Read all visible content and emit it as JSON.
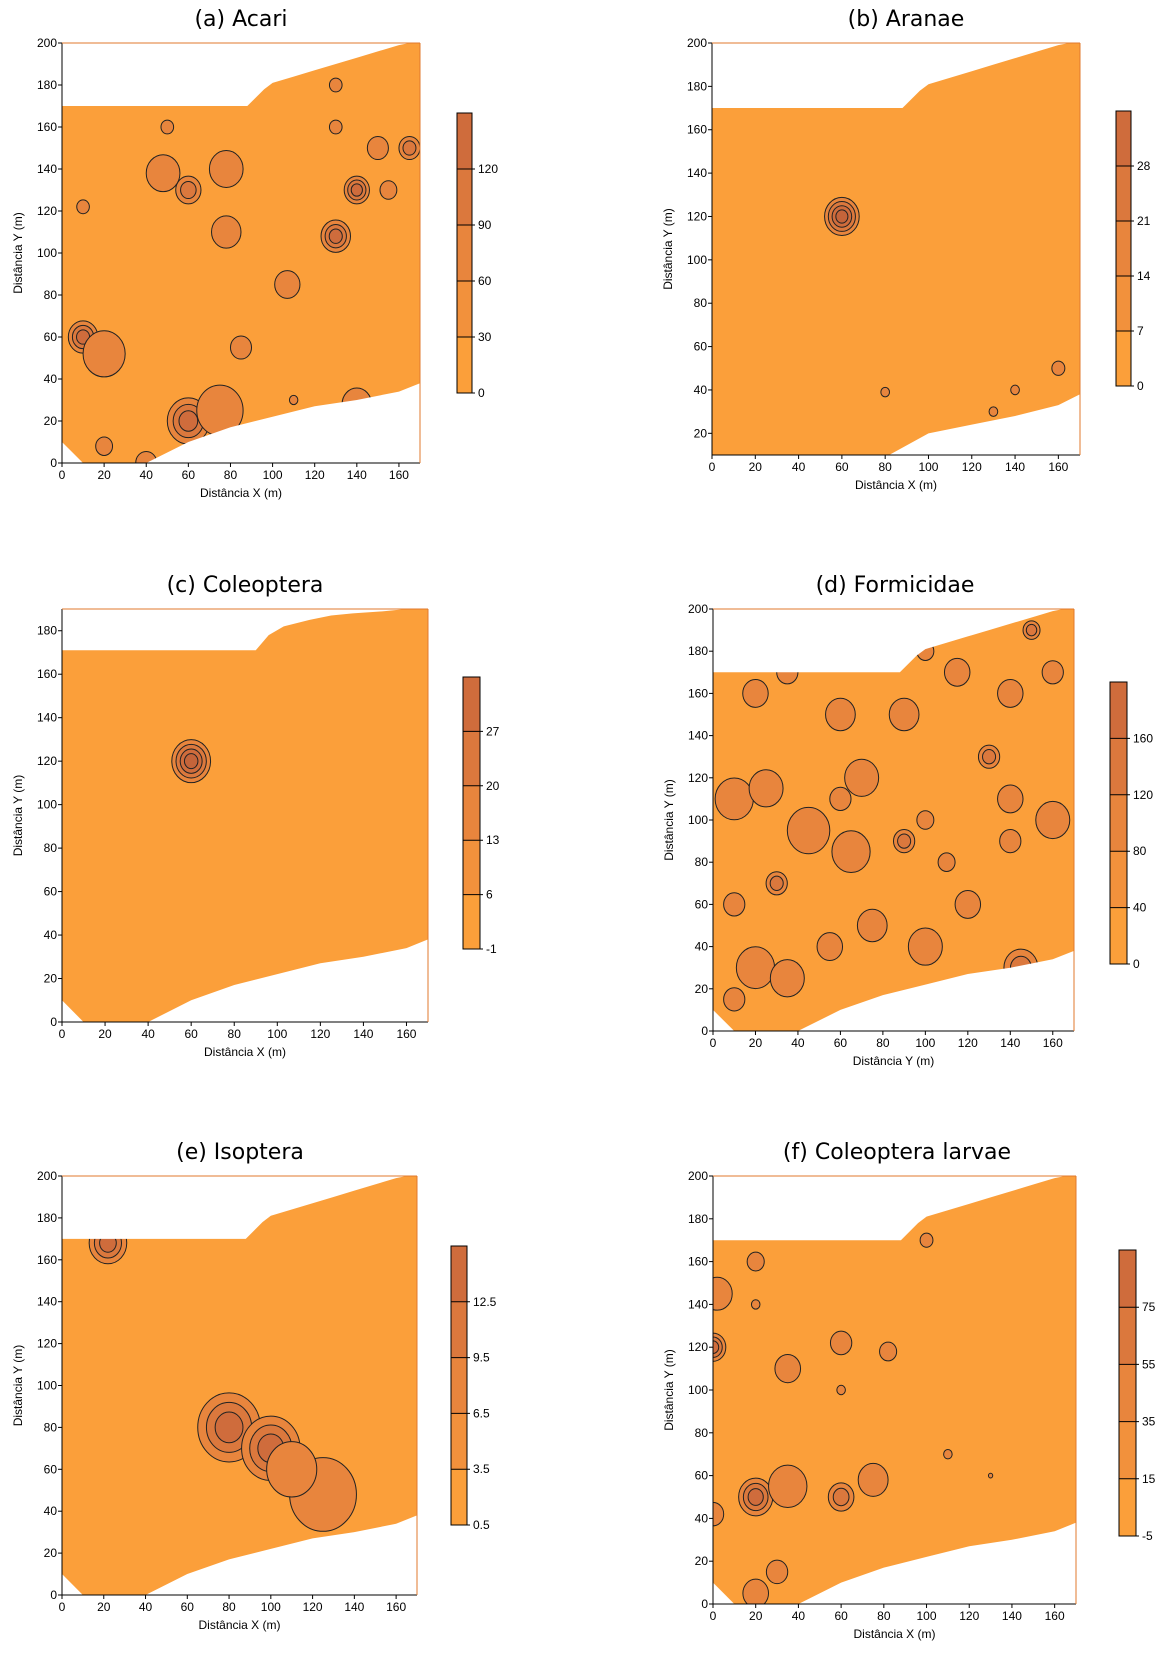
{
  "colors": {
    "base": "#FB9F3A",
    "c2": "#F2913C",
    "c3": "#E8853D",
    "c4": "#DB783D",
    "c5": "#CF6C3C",
    "c6": "#C4643A",
    "blank": "#ffffff",
    "frame": "#E07A2C"
  },
  "chart_data": [
    {
      "type": "contour",
      "title": "(a) Acari",
      "xlabel": "Distância X (m)",
      "ylabel": "Distância Y (m)",
      "xlim": [
        0,
        170
      ],
      "ylim": [
        0,
        200
      ],
      "xticks": [
        0,
        20,
        40,
        60,
        80,
        100,
        120,
        140,
        160
      ],
      "yticks": [
        0,
        20,
        40,
        60,
        80,
        100,
        120,
        140,
        160,
        180,
        200
      ],
      "colorbar": {
        "ticks": [
          0,
          30,
          60,
          90,
          120
        ],
        "vmin": 0,
        "vmax": 150
      },
      "hotspots": [
        {
          "x": 10,
          "y": 60,
          "r": 7,
          "levels": 3
        },
        {
          "x": 20,
          "y": 52,
          "r": 10,
          "levels": 1
        },
        {
          "x": 60,
          "y": 20,
          "r": 10,
          "levels": 3
        },
        {
          "x": 75,
          "y": 25,
          "r": 11,
          "levels": 1
        },
        {
          "x": 60,
          "y": 130,
          "r": 6,
          "levels": 2
        },
        {
          "x": 48,
          "y": 138,
          "r": 8,
          "levels": 1
        },
        {
          "x": 78,
          "y": 140,
          "r": 8,
          "levels": 1
        },
        {
          "x": 130,
          "y": 108,
          "r": 7,
          "levels": 3
        },
        {
          "x": 140,
          "y": 130,
          "r": 6,
          "levels": 3
        },
        {
          "x": 78,
          "y": 110,
          "r": 7,
          "levels": 1
        },
        {
          "x": 107,
          "y": 85,
          "r": 6,
          "levels": 1
        },
        {
          "x": 140,
          "y": 28,
          "r": 7,
          "levels": 1
        },
        {
          "x": 20,
          "y": 8,
          "r": 4,
          "levels": 1
        },
        {
          "x": 40,
          "y": 0,
          "r": 5,
          "levels": 1
        },
        {
          "x": 150,
          "y": 150,
          "r": 5,
          "levels": 1
        },
        {
          "x": 165,
          "y": 150,
          "r": 5,
          "levels": 2
        },
        {
          "x": 50,
          "y": 160,
          "r": 3,
          "levels": 1
        },
        {
          "x": 130,
          "y": 180,
          "r": 3,
          "levels": 1
        },
        {
          "x": 130,
          "y": 160,
          "r": 3,
          "levels": 1
        },
        {
          "x": 155,
          "y": 130,
          "r": 4,
          "levels": 1
        },
        {
          "x": 10,
          "y": 122,
          "r": 3,
          "levels": 1
        },
        {
          "x": 110,
          "y": 30,
          "r": 2,
          "levels": 1
        },
        {
          "x": 85,
          "y": 55,
          "r": 5,
          "levels": 1
        }
      ]
    },
    {
      "type": "contour",
      "title": "(b) Aranae",
      "xlabel": "Distância X (m)",
      "ylabel": "Distância Y (m)",
      "xlim": [
        0,
        170
      ],
      "ylim": [
        10,
        200
      ],
      "xticks": [
        0,
        20,
        40,
        60,
        80,
        100,
        120,
        140,
        160
      ],
      "yticks": [
        20,
        40,
        60,
        80,
        100,
        120,
        140,
        160,
        180,
        200
      ],
      "colorbar": {
        "ticks": [
          0,
          7,
          14,
          21,
          28
        ],
        "vmin": 0,
        "vmax": 35
      },
      "hotspots": [
        {
          "x": 60,
          "y": 120,
          "r": 8,
          "levels": 4
        },
        {
          "x": 80,
          "y": 39,
          "r": 2,
          "levels": 1
        },
        {
          "x": 130,
          "y": 30,
          "r": 2,
          "levels": 1
        },
        {
          "x": 140,
          "y": 40,
          "r": 2,
          "levels": 1
        },
        {
          "x": 160,
          "y": 50,
          "r": 3,
          "levels": 1
        }
      ]
    },
    {
      "type": "contour",
      "title": "(c) Coleoptera",
      "xlabel": "Distância X (m)",
      "ylabel": "Distância Y (m)",
      "xlim": [
        0,
        170
      ],
      "ylim": [
        0,
        190
      ],
      "xticks": [
        0,
        20,
        40,
        60,
        80,
        100,
        120,
        140,
        160
      ],
      "yticks": [
        0,
        20,
        40,
        60,
        80,
        100,
        120,
        140,
        160,
        180
      ],
      "colorbar": {
        "ticks": [
          -1,
          6,
          13,
          20,
          27
        ],
        "vmin": -1,
        "vmax": 34
      },
      "hotspots": [
        {
          "x": 60,
          "y": 120,
          "r": 9,
          "levels": 4
        }
      ]
    },
    {
      "type": "contour",
      "title": "(d) Formicidae",
      "xlabel": "Distância Y (m)",
      "ylabel": "Distância Y (m)",
      "xlim": [
        0,
        170
      ],
      "ylim": [
        0,
        200
      ],
      "xticks": [
        0,
        20,
        40,
        60,
        80,
        100,
        120,
        140,
        160
      ],
      "yticks": [
        0,
        20,
        40,
        60,
        80,
        100,
        120,
        140,
        160,
        180,
        200
      ],
      "colorbar": {
        "ticks": [
          0,
          40,
          80,
          120,
          160
        ],
        "vmin": 0,
        "vmax": 200
      },
      "hotspots": [
        {
          "x": 20,
          "y": 30,
          "r": 9,
          "levels": 1
        },
        {
          "x": 35,
          "y": 25,
          "r": 8,
          "levels": 1
        },
        {
          "x": 30,
          "y": 70,
          "r": 5,
          "levels": 2
        },
        {
          "x": 10,
          "y": 110,
          "r": 9,
          "levels": 1
        },
        {
          "x": 25,
          "y": 115,
          "r": 8,
          "levels": 1
        },
        {
          "x": 45,
          "y": 95,
          "r": 10,
          "levels": 1
        },
        {
          "x": 65,
          "y": 85,
          "r": 9,
          "levels": 1
        },
        {
          "x": 70,
          "y": 120,
          "r": 8,
          "levels": 1
        },
        {
          "x": 90,
          "y": 90,
          "r": 5,
          "levels": 2
        },
        {
          "x": 100,
          "y": 100,
          "r": 4,
          "levels": 1
        },
        {
          "x": 110,
          "y": 80,
          "r": 4,
          "levels": 1
        },
        {
          "x": 130,
          "y": 130,
          "r": 5,
          "levels": 2
        },
        {
          "x": 145,
          "y": 30,
          "r": 8,
          "levels": 2
        },
        {
          "x": 150,
          "y": 190,
          "r": 4,
          "levels": 2
        },
        {
          "x": 115,
          "y": 170,
          "r": 6,
          "levels": 1
        },
        {
          "x": 60,
          "y": 150,
          "r": 7,
          "levels": 1
        },
        {
          "x": 90,
          "y": 150,
          "r": 7,
          "levels": 1
        },
        {
          "x": 140,
          "y": 160,
          "r": 6,
          "levels": 1
        },
        {
          "x": 20,
          "y": 160,
          "r": 6,
          "levels": 1
        },
        {
          "x": 35,
          "y": 170,
          "r": 5,
          "levels": 1
        },
        {
          "x": 160,
          "y": 100,
          "r": 8,
          "levels": 1
        },
        {
          "x": 100,
          "y": 40,
          "r": 8,
          "levels": 1
        },
        {
          "x": 75,
          "y": 50,
          "r": 7,
          "levels": 1
        },
        {
          "x": 55,
          "y": 40,
          "r": 6,
          "levels": 1
        },
        {
          "x": 10,
          "y": 15,
          "r": 5,
          "levels": 1
        },
        {
          "x": 120,
          "y": 60,
          "r": 6,
          "levels": 1
        },
        {
          "x": 140,
          "y": 110,
          "r": 6,
          "levels": 1
        },
        {
          "x": 60,
          "y": 110,
          "r": 5,
          "levels": 1
        },
        {
          "x": 10,
          "y": 60,
          "r": 5,
          "levels": 1
        },
        {
          "x": 160,
          "y": 170,
          "r": 5,
          "levels": 1
        },
        {
          "x": 100,
          "y": 180,
          "r": 4,
          "levels": 1
        },
        {
          "x": 140,
          "y": 90,
          "r": 5,
          "levels": 1
        }
      ]
    },
    {
      "type": "contour",
      "title": "(e) Isoptera",
      "xlabel": "Distância X (m)",
      "ylabel": "Distância Y (m)",
      "xlim": [
        0,
        170
      ],
      "ylim": [
        0,
        200
      ],
      "xticks": [
        0,
        20,
        40,
        60,
        80,
        100,
        120,
        140,
        160
      ],
      "yticks": [
        0,
        20,
        40,
        60,
        80,
        100,
        120,
        140,
        160,
        180,
        200
      ],
      "colorbar": {
        "ticks": [
          0.5,
          3.5,
          6.5,
          9.5,
          12.5
        ],
        "vmin": 0.5,
        "vmax": 15.5
      },
      "hotspots": [
        {
          "x": 22,
          "y": 168,
          "r": 9,
          "levels": 3
        },
        {
          "x": 80,
          "y": 80,
          "r": 15,
          "levels": 3
        },
        {
          "x": 100,
          "y": 70,
          "r": 14,
          "levels": 3
        },
        {
          "x": 125,
          "y": 48,
          "r": 16,
          "levels": 1
        },
        {
          "x": 110,
          "y": 60,
          "r": 12,
          "levels": 1
        }
      ]
    },
    {
      "type": "contour",
      "title": "(f) Coleoptera larvae",
      "xlabel": "Distância X (m)",
      "ylabel": "Distância Y (m)",
      "xlim": [
        0,
        170
      ],
      "ylim": [
        0,
        200
      ],
      "xticks": [
        0,
        20,
        40,
        60,
        80,
        100,
        120,
        140,
        160
      ],
      "yticks": [
        0,
        20,
        40,
        60,
        80,
        100,
        120,
        140,
        160,
        180,
        200
      ],
      "colorbar": {
        "ticks": [
          -5,
          15,
          35,
          55,
          75
        ],
        "vmin": -5,
        "vmax": 95
      },
      "hotspots": [
        {
          "x": 0,
          "y": 120,
          "r": 6,
          "levels": 3
        },
        {
          "x": 2,
          "y": 145,
          "r": 7,
          "levels": 1
        },
        {
          "x": 20,
          "y": 50,
          "r": 8,
          "levels": 3
        },
        {
          "x": 35,
          "y": 55,
          "r": 9,
          "levels": 1
        },
        {
          "x": 60,
          "y": 50,
          "r": 6,
          "levels": 2
        },
        {
          "x": 75,
          "y": 58,
          "r": 7,
          "levels": 1
        },
        {
          "x": 0,
          "y": 42,
          "r": 5,
          "levels": 1
        },
        {
          "x": 20,
          "y": 5,
          "r": 6,
          "levels": 1
        },
        {
          "x": 30,
          "y": 15,
          "r": 5,
          "levels": 1
        },
        {
          "x": 20,
          "y": 160,
          "r": 4,
          "levels": 1
        },
        {
          "x": 20,
          "y": 140,
          "r": 2,
          "levels": 1
        },
        {
          "x": 35,
          "y": 110,
          "r": 6,
          "levels": 1
        },
        {
          "x": 60,
          "y": 122,
          "r": 5,
          "levels": 1
        },
        {
          "x": 82,
          "y": 118,
          "r": 4,
          "levels": 1
        },
        {
          "x": 60,
          "y": 100,
          "r": 2,
          "levels": 1
        },
        {
          "x": 100,
          "y": 170,
          "r": 3,
          "levels": 1
        },
        {
          "x": 110,
          "y": 70,
          "r": 2,
          "levels": 1
        },
        {
          "x": 130,
          "y": 60,
          "r": 1,
          "levels": 1
        }
      ]
    }
  ]
}
